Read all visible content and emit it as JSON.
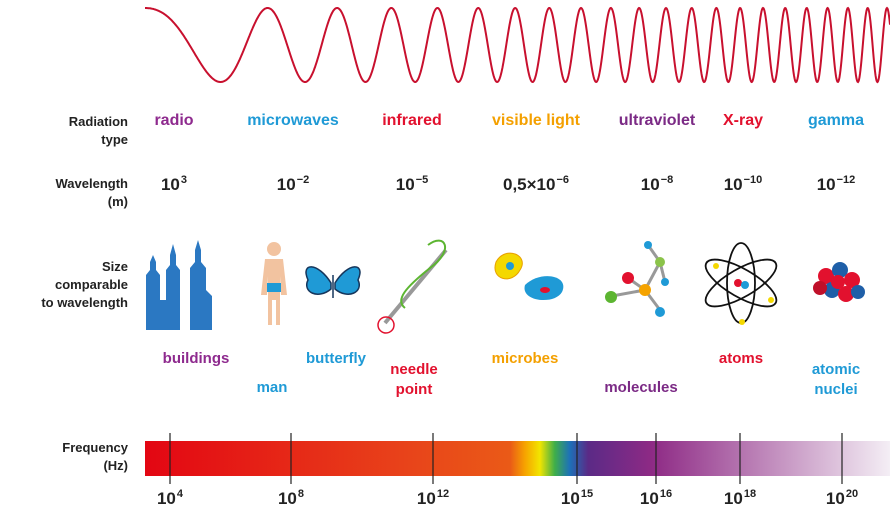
{
  "row_labels": [
    [
      "Radiation",
      "type"
    ],
    [
      "Wavelength",
      "(m)"
    ],
    [
      "Size",
      "comparable",
      "to wavelength"
    ],
    [
      "Frequency",
      "(Hz)"
    ]
  ],
  "radiation_types": [
    {
      "name": "radio",
      "color": "#8e2a8e"
    },
    {
      "name": "microwaves",
      "color": "#1f9ad6"
    },
    {
      "name": "infrared",
      "color": "#e2112e"
    },
    {
      "name": "visible light",
      "color": "#f4a000"
    },
    {
      "name": "ultraviolet",
      "color": "#7b2a85"
    },
    {
      "name": "X-ray",
      "color": "#e2112e"
    },
    {
      "name": "gamma",
      "color": "#1f9ad6"
    }
  ],
  "wavelengths": [
    {
      "base": "10",
      "exponent": "3"
    },
    {
      "base": "10",
      "exponent": "−2"
    },
    {
      "base": "10",
      "exponent": "−5"
    },
    {
      "base": "0,5×10",
      "exponent": "−6"
    },
    {
      "base": "10",
      "exponent": "−8"
    },
    {
      "base": "10",
      "exponent": "−10"
    },
    {
      "base": "10",
      "exponent": "−12"
    }
  ],
  "size_examples": [
    {
      "lines": [
        "buildings"
      ],
      "color": "#8e2a8e"
    },
    {
      "lines": [
        "man"
      ],
      "color": "#1f9ad6"
    },
    {
      "lines": [
        "butterfly"
      ],
      "color": "#1f9ad6"
    },
    {
      "lines": [
        "needle",
        "point"
      ],
      "color": "#e2112e"
    },
    {
      "lines": [
        "microbes"
      ],
      "color": "#f4a000"
    },
    {
      "lines": [
        "molecules"
      ],
      "color": "#7b2a85"
    },
    {
      "lines": [
        "atoms"
      ],
      "color": "#e2112e"
    },
    {
      "lines": [
        "atomic",
        "nuclei"
      ],
      "color": "#1f9ad6"
    }
  ],
  "frequency_ticks": [
    {
      "base": "10",
      "exponent": "4"
    },
    {
      "base": "10",
      "exponent": "8"
    },
    {
      "base": "10",
      "exponent": "12"
    },
    {
      "base": "10",
      "exponent": "15"
    },
    {
      "base": "10",
      "exponent": "16"
    },
    {
      "base": "10",
      "exponent": "18"
    },
    {
      "base": "10",
      "exponent": "20"
    }
  ]
}
